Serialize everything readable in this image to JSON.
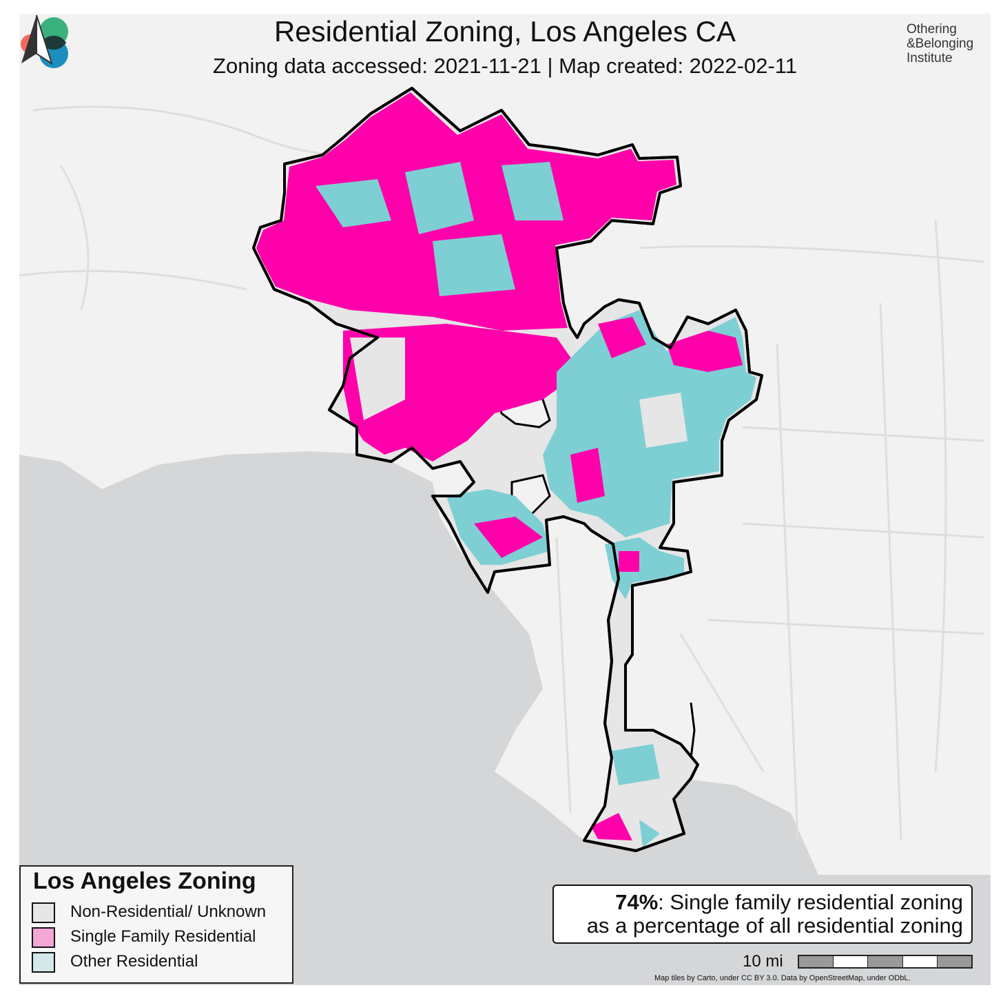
{
  "title": "Residential Zoning, Los Angeles CA",
  "subtitle": "Zoning data accessed: 2021-11-21 | Map created: 2022-02-11",
  "logo": {
    "lines": [
      "Othering",
      "&Belonging",
      "Institute"
    ],
    "colors": {
      "red": "#f06a5f",
      "green": "#3bb27e",
      "blue": "#1d8fbe",
      "overlap": "#1f3a3a"
    }
  },
  "legend": {
    "title": "Los Angeles Zoning",
    "items": [
      {
        "label": "Non-Residential/ Unknown",
        "color": "#e6e6e6"
      },
      {
        "label": "Single Family Residential",
        "color": "#f4a6d7"
      },
      {
        "label": "Other Residential",
        "color": "#d2e8ea"
      }
    ]
  },
  "stat": {
    "percent": "74%",
    "line1_rest": ": Single family residential zoning",
    "line2": "as a percentage of all residential zoning"
  },
  "scale": {
    "label": "10 mi"
  },
  "attribution": "Map tiles by Carto, under CC BY 3.0. Data by OpenStreetMap, under ODbL.",
  "colors": {
    "ocean": "#d4d6d8",
    "land": "#f2f2f2",
    "non_residential": "#e6e6e6",
    "single_family": "#ff00aa",
    "other_residential": "#7ecfd4",
    "boundary": "#000000"
  }
}
